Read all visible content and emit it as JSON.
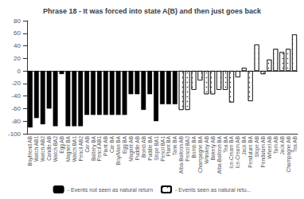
{
  "chart_data": {
    "type": "bar",
    "title": "Phrase 18 - It was forced into state A(B) and then just goes back",
    "categories": [
      "Boyfriend AB",
      "Watch AB1",
      "Watch AB2",
      "Candle AB",
      "Watch BA2",
      "Egg AB",
      "Magnet BA",
      "Watch BA1",
      "Pencil AB2",
      "Car AB",
      "Battery BA",
      "Pencil AB1",
      "Plant AB",
      "Car BA",
      "Boy/Man BA",
      "Egg BA",
      "Magnet AB",
      "Puddle AB",
      "Bomb AB",
      "Puddle BA",
      "Slope BA1",
      "Pencil BA1",
      "Plant BA",
      "Tank BA",
      "Alba-Balloon AB",
      "Pencil BA2",
      "Bomb BA",
      "Champagne BA",
      "Whiskey AB",
      "Bakery AB",
      "Alba-Balloon BA",
      "Tea BA",
      "Ice-Cream BA",
      "Ice-Cream AB",
      "Jack BA",
      "Pendulum BA",
      "Slope AB",
      "Pendulum AB",
      "Wheel AB",
      "Tam AB",
      "Jack AB",
      "Champagne AB",
      "Tea AB"
    ],
    "series": [
      {
        "name": "- Events not seen as natural return",
        "color": "black",
        "values": [
          -90,
          -75,
          -85,
          -60,
          -88,
          -5,
          -88,
          -88,
          -88,
          -70,
          -70,
          -70,
          -70,
          -70,
          -70,
          -70,
          -37,
          -37,
          -62,
          -37,
          -80,
          -53,
          -53,
          -53,
          null,
          null,
          null,
          null,
          null,
          null,
          null,
          null,
          null,
          null,
          null,
          null,
          null,
          null,
          null,
          null,
          null,
          null,
          null
        ]
      },
      {
        "name": "- Events seen as natural retu...",
        "color": "white",
        "values": [
          null,
          null,
          null,
          null,
          null,
          null,
          null,
          null,
          null,
          null,
          null,
          null,
          null,
          null,
          null,
          null,
          null,
          null,
          null,
          null,
          null,
          null,
          null,
          null,
          -62,
          -62,
          -30,
          -15,
          -37,
          -37,
          -30,
          -30,
          -50,
          -10,
          5,
          -48,
          42,
          -5,
          18,
          35,
          30,
          35,
          58
        ]
      }
    ],
    "ylim": [
      -100,
      80
    ],
    "yticks": [
      -100,
      -80,
      -60,
      -40,
      -20,
      0,
      20,
      40,
      60,
      80
    ],
    "grid": false,
    "legend": "bottom"
  }
}
